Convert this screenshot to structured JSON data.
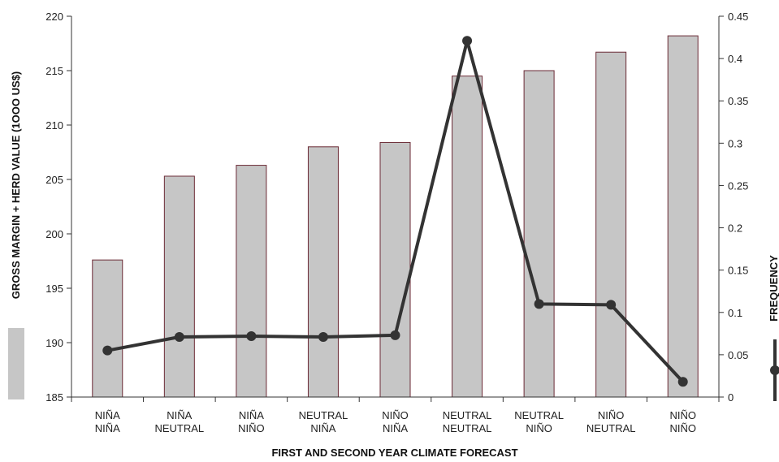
{
  "chart_data": {
    "type": "bar",
    "categories": [
      [
        "NIÑA",
        "NIÑA"
      ],
      [
        "NIÑA",
        "NEUTRAL"
      ],
      [
        "NIÑA",
        "NIÑO"
      ],
      [
        "NEUTRAL",
        "NIÑA"
      ],
      [
        "NIÑO",
        "NIÑA"
      ],
      [
        "NEUTRAL",
        "NEUTRAL"
      ],
      [
        "NEUTRAL",
        "NIÑO"
      ],
      [
        "NIÑO",
        "NEUTRAL"
      ],
      [
        "NIÑO",
        "NIÑO"
      ]
    ],
    "series": [
      {
        "axis": "left",
        "type": "bar",
        "values": [
          197.6,
          205.3,
          206.3,
          208.0,
          208.4,
          214.5,
          215.0,
          216.7,
          218.2
        ],
        "color": "#c6c6c6",
        "edge_color": "#6b2a35"
      },
      {
        "axis": "right",
        "type": "line",
        "values": [
          0.055,
          0.071,
          0.072,
          0.071,
          0.073,
          0.421,
          0.11,
          0.109,
          0.018
        ],
        "color": "#333333"
      }
    ],
    "xlabel": "FIRST AND SECOND YEAR CLIMATE FORECAST",
    "ylabel": "GROSS MARGIN + HERD VALUE (1OOO US$)",
    "y2label": "FREQUENCY",
    "ylim": [
      185,
      220
    ],
    "y2lim": [
      0,
      0.45
    ],
    "yticks": [
      "185",
      "190",
      "195",
      "200",
      "205",
      "210",
      "215",
      "220"
    ],
    "y2ticks": [
      "0",
      "0.05",
      "0.1",
      "0.15",
      "0.2",
      "0.25",
      "0.3",
      "0.35",
      "0.4",
      "0.45"
    ],
    "grid": false,
    "legend": "right"
  }
}
